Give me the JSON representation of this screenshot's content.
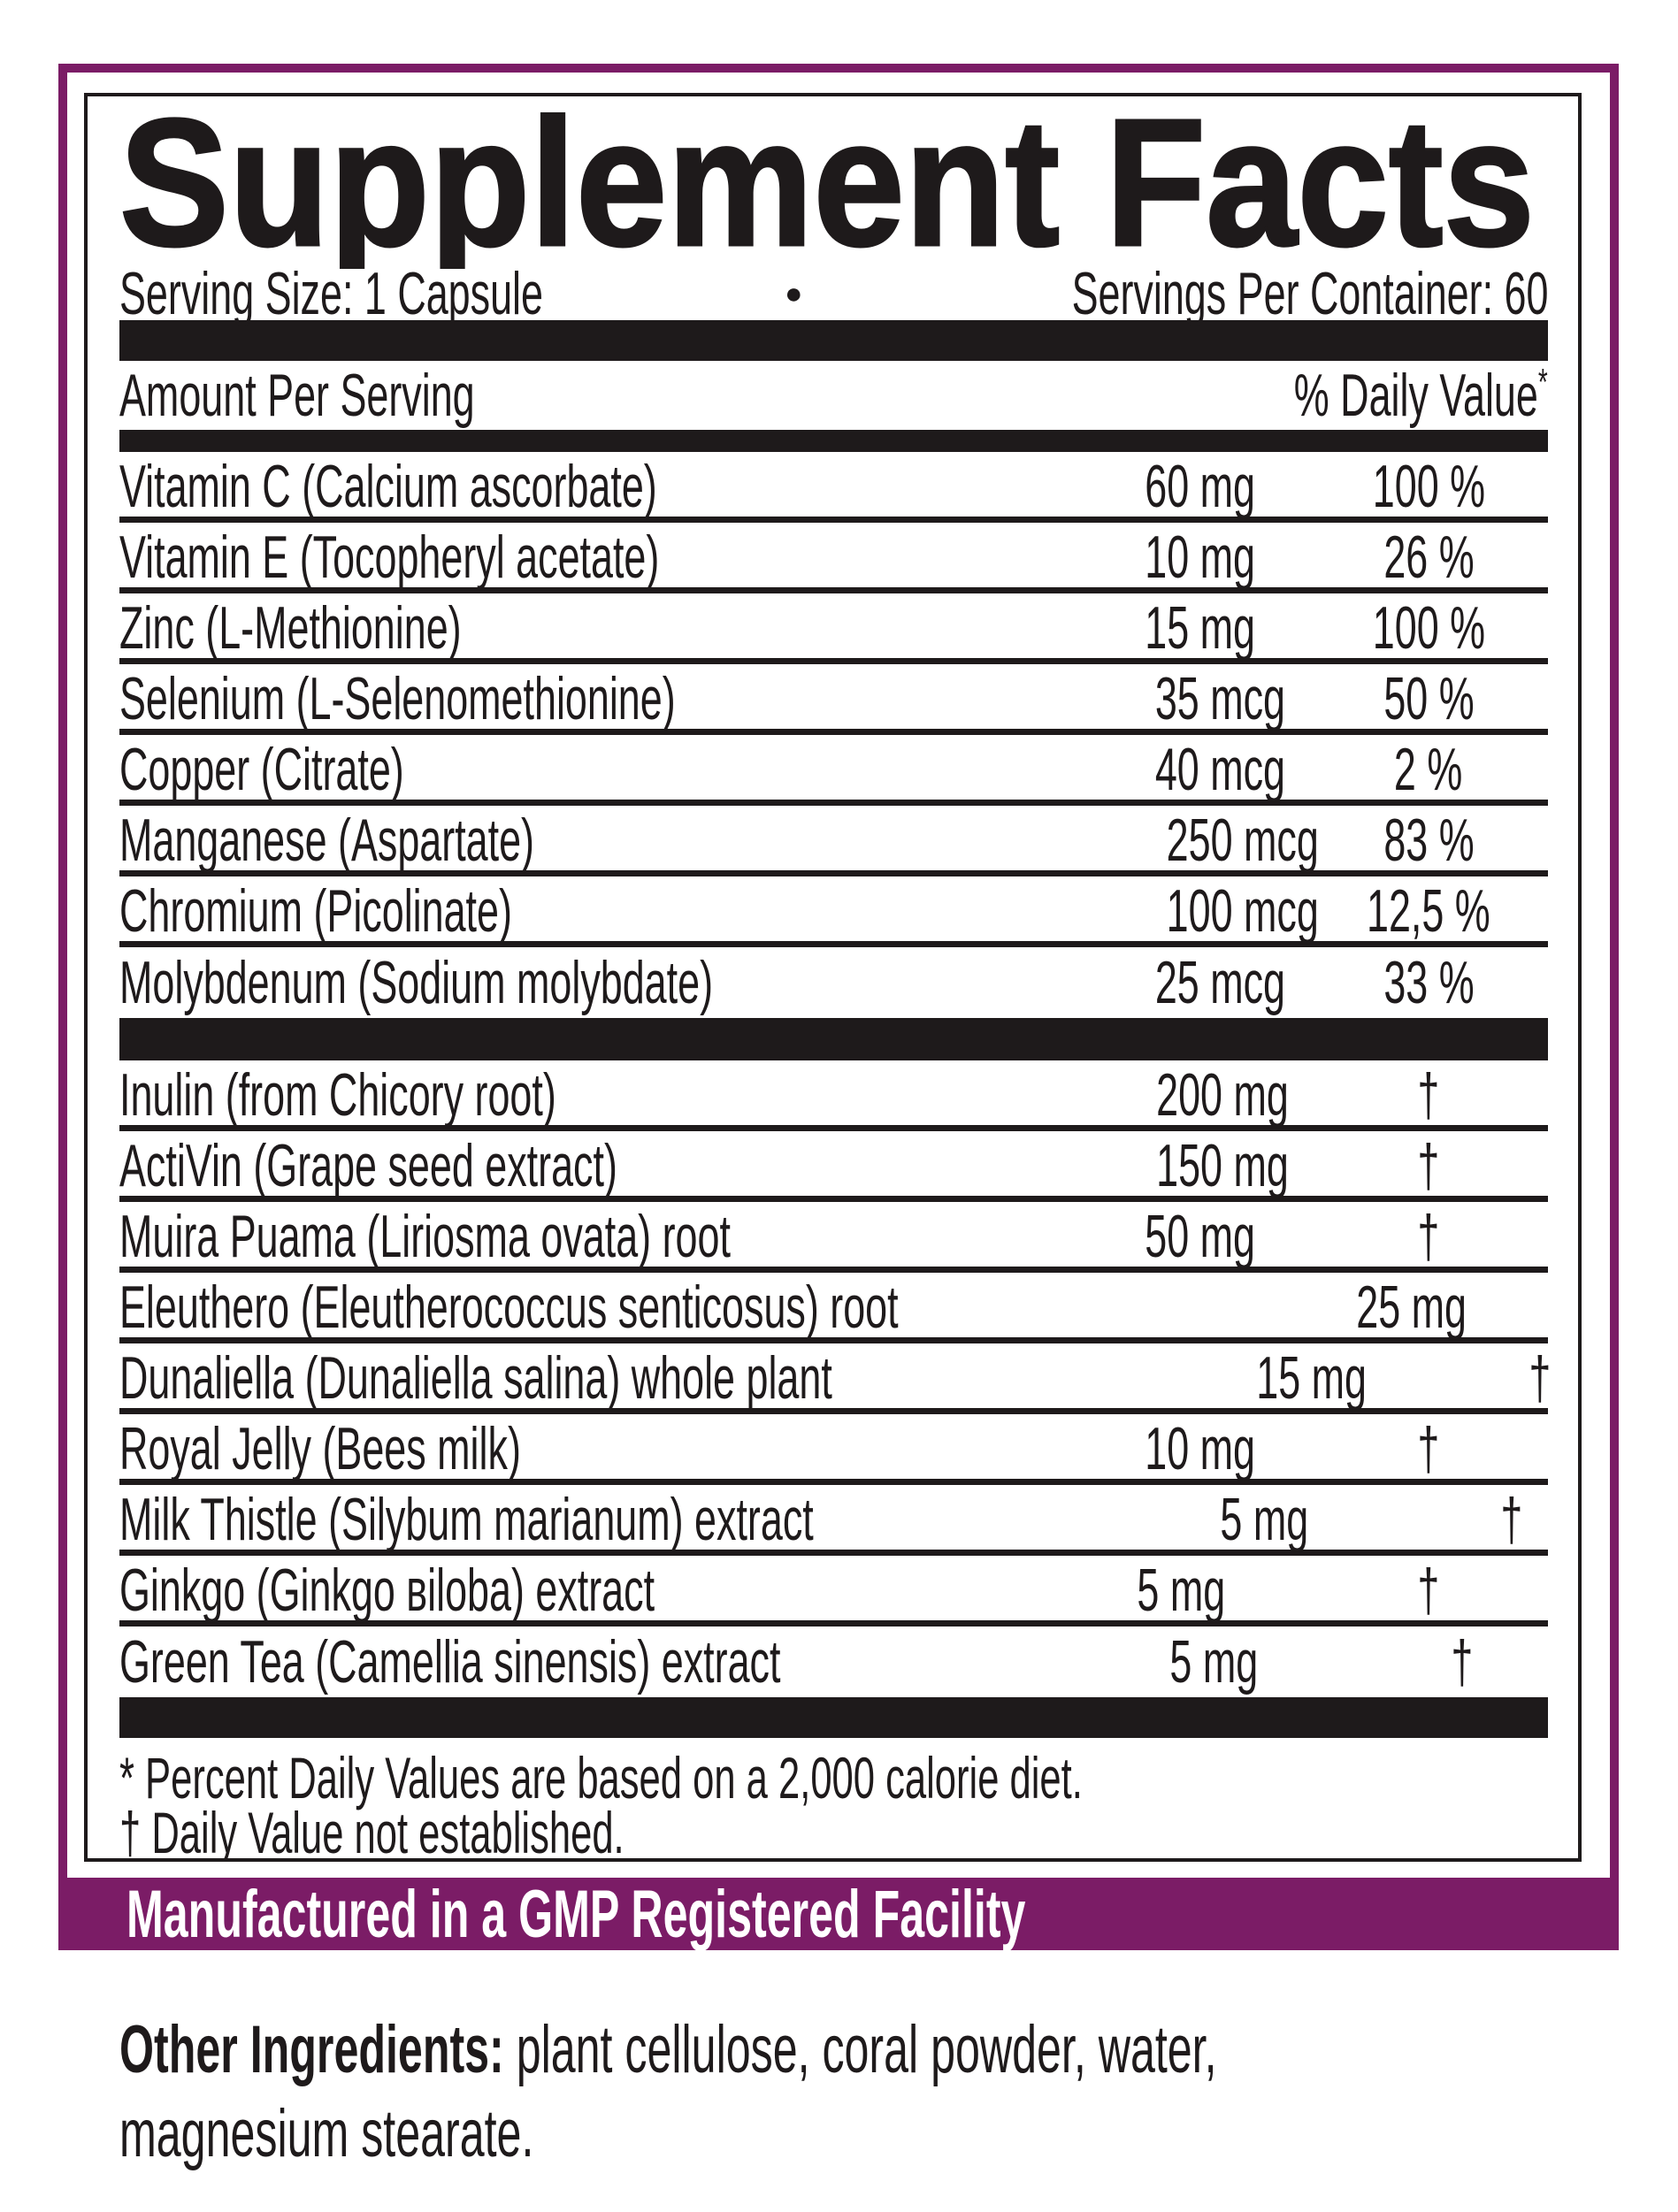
{
  "title": "Supplement Facts",
  "serving": {
    "size_label": "Serving Size: 1 Capsule",
    "separator": "●",
    "per_container": "Servings Per Container: 60"
  },
  "table": {
    "amount_header": "Amount Per Serving",
    "dv_header": "% Daily Value",
    "dv_header_mark": "*",
    "nutrients": [
      {
        "name": "Vitamin C (Calcium ascorbate)",
        "amount": "60 mg",
        "dv": "100 %"
      },
      {
        "name": "Vitamin E (Tocopheryl acetate)",
        "amount": "10 mg",
        "dv": "26 %"
      },
      {
        "name": "Zinc (L-Methionine)",
        "amount": "15 mg",
        "dv": "100 %"
      },
      {
        "name": "Selenium (L-Selenomethionine)",
        "amount": "35 mcg",
        "dv": "50 %"
      },
      {
        "name": "Copper (Citrate)",
        "amount": "40 mcg",
        "dv": "2 %"
      },
      {
        "name": "Manganese (Aspartate)",
        "amount": "250 mcg",
        "dv": "83 %"
      },
      {
        "name": "Chromium (Picolinate)",
        "amount": "100 mcg",
        "dv": "12,5 %"
      },
      {
        "name": "Molybdenum (Sodium molybdate)",
        "amount": "25 mcg",
        "dv": "33 %"
      }
    ],
    "botanicals": [
      {
        "name": "Inulin (from Chicory root)",
        "amount": "200 mg",
        "dv": "†"
      },
      {
        "name": "ActiVin (Grape seed extract)",
        "amount": "150 mg",
        "dv": "†"
      },
      {
        "name": "Muira Puama (Liriosma ovata) root",
        "amount": "50 mg",
        "dv": "†"
      },
      {
        "name": "Eleuthero (Eleutherococcus senticosus) root",
        "amount": "25 mg",
        "dv": "†"
      },
      {
        "name": "Dunaliella (Dunaliella salina) whole plant",
        "amount": "15 mg",
        "dv": "†"
      },
      {
        "name": "Royal Jelly (Bees milk)",
        "amount": "10 mg",
        "dv": "†"
      },
      {
        "name": "Milk Thistle (Silybum marianum) extract",
        "amount": "5 mg",
        "dv": "†"
      },
      {
        "name": "Ginkgo (Ginkgo вiloba) extract",
        "amount": "5 mg",
        "dv": "†"
      },
      {
        "name": "Green Tea (Camellia sinensis) extract",
        "amount": "5 mg",
        "dv": "†"
      }
    ],
    "footnote_dv": "* Percent Daily Values are based on a 2,000 calorie diet.",
    "footnote_dagger": "† Daily Value not established."
  },
  "banner": {
    "text": "Manufactured in a GMP Registered Facility"
  },
  "other_ingredients": {
    "label": "Other Ingredients:",
    "text": " plant cellulose, coral powder, water, magnesium stearate."
  },
  "colors": {
    "purple": "#7b1c66",
    "ink": "#1e1a1b"
  }
}
